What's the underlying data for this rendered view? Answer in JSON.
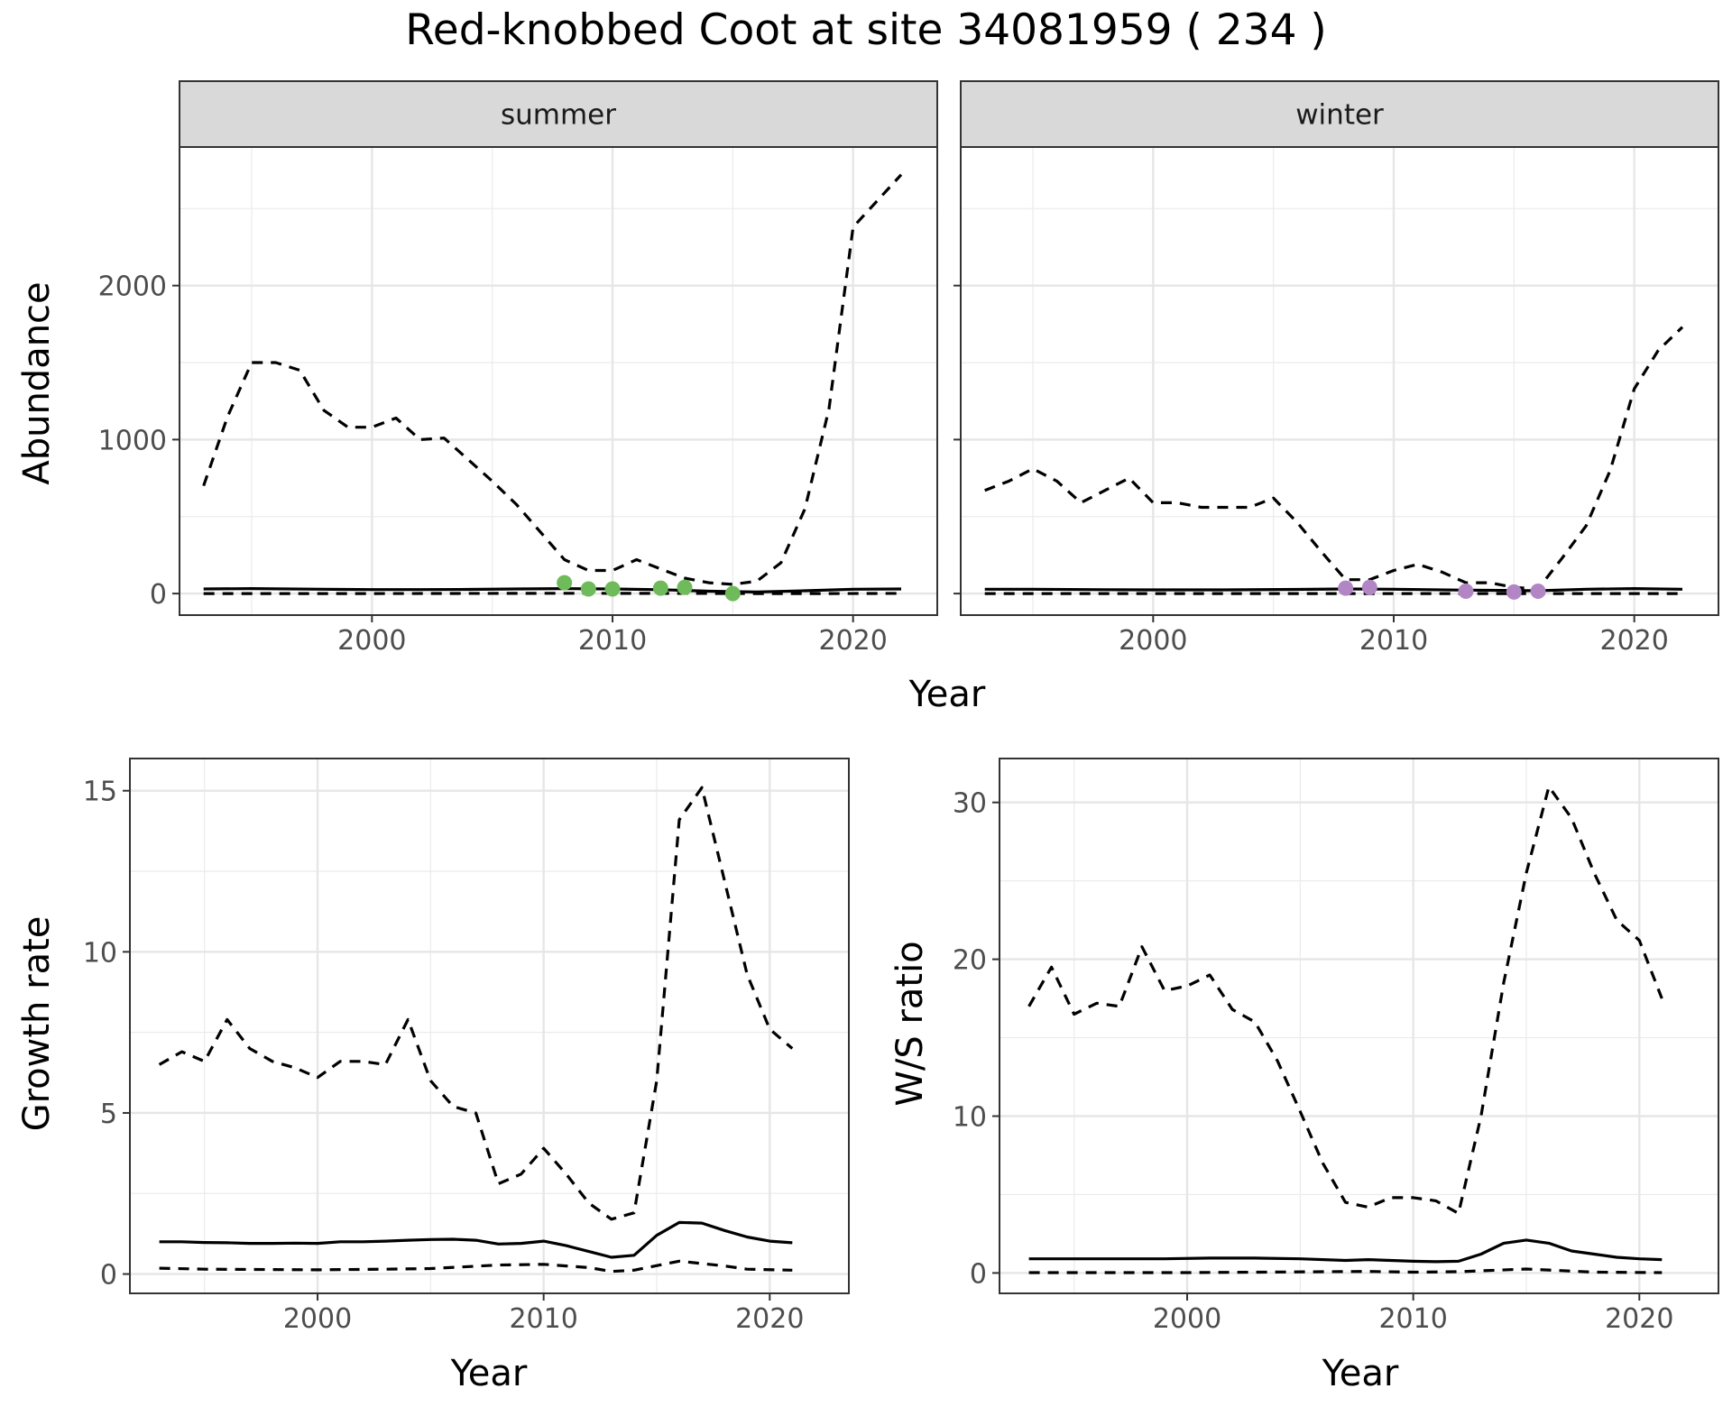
{
  "title": "Red-knobbed Coot at site 34081959 ( 234 )",
  "colors": {
    "summer_points": "#6fbb5b",
    "winter_points": "#b286c4",
    "line": "#000000"
  },
  "chart_data": [
    {
      "type": "line",
      "panel": "summer",
      "strip_label": "summer",
      "xlabel": "Year",
      "ylabel": "Abundance",
      "xlim": [
        1992,
        2023.5
      ],
      "ylim": [
        -140,
        2900
      ],
      "x_ticks": [
        2000,
        2010,
        2020
      ],
      "y_ticks": [
        0,
        1000,
        2000
      ],
      "grid": true,
      "series": [
        {
          "role": "upper",
          "style": "dashed",
          "x": [
            1993,
            1994,
            1995,
            1996,
            1997,
            1998,
            1999,
            2000,
            2001,
            2002,
            2003,
            2004,
            2005,
            2006,
            2007,
            2008,
            2009,
            2010,
            2011,
            2012,
            2013,
            2014,
            2015,
            2016,
            2017,
            2018,
            2019,
            2020,
            2021,
            2022
          ],
          "values": [
            700,
            1150,
            1500,
            1500,
            1450,
            1190,
            1080,
            1080,
            1140,
            1000,
            1010,
            870,
            730,
            580,
            400,
            220,
            150,
            150,
            220,
            160,
            100,
            70,
            60,
            80,
            200,
            550,
            1200,
            2380,
            2550,
            2720
          ]
        },
        {
          "role": "mean",
          "style": "solid",
          "x": [
            1993,
            1995,
            1998,
            2000,
            2002,
            2004,
            2006,
            2008,
            2010,
            2012,
            2014,
            2016,
            2018,
            2020,
            2022
          ],
          "values": [
            30,
            32,
            28,
            26,
            26,
            27,
            30,
            32,
            30,
            25,
            15,
            10,
            18,
            28,
            30
          ]
        },
        {
          "role": "lower",
          "style": "dashed",
          "x": [
            1993,
            2000,
            2008,
            2013,
            2016,
            2019,
            2022
          ],
          "values": [
            0,
            0,
            2,
            1,
            0,
            0,
            1
          ]
        }
      ],
      "points": {
        "x": [
          2008,
          2009,
          2010,
          2012,
          2013,
          2015
        ],
        "values": [
          70,
          30,
          30,
          35,
          40,
          0
        ]
      }
    },
    {
      "type": "line",
      "panel": "winter",
      "strip_label": "winter",
      "xlabel": "Year",
      "ylabel": "Abundance",
      "xlim": [
        1992,
        2023.5
      ],
      "ylim": [
        -140,
        2900
      ],
      "x_ticks": [
        2000,
        2010,
        2020
      ],
      "y_ticks": [
        0,
        1000,
        2000
      ],
      "grid": true,
      "series": [
        {
          "role": "upper",
          "style": "dashed",
          "x": [
            1993,
            1994,
            1995,
            1996,
            1997,
            1998,
            1999,
            2000,
            2001,
            2002,
            2003,
            2004,
            2005,
            2006,
            2007,
            2008,
            2009,
            2010,
            2011,
            2012,
            2013,
            2014,
            2015,
            2016,
            2017,
            2018,
            2019,
            2020,
            2021,
            2022
          ],
          "values": [
            670,
            730,
            810,
            730,
            590,
            670,
            750,
            590,
            590,
            560,
            560,
            560,
            620,
            460,
            270,
            90,
            90,
            150,
            190,
            140,
            70,
            70,
            40,
            30,
            230,
            440,
            800,
            1330,
            1580,
            1730
          ]
        },
        {
          "role": "mean",
          "style": "solid",
          "x": [
            1993,
            1995,
            1998,
            2000,
            2003,
            2006,
            2008,
            2010,
            2013,
            2016,
            2018,
            2020,
            2022
          ],
          "values": [
            28,
            28,
            25,
            24,
            24,
            27,
            30,
            28,
            22,
            18,
            28,
            32,
            28
          ]
        },
        {
          "role": "lower",
          "style": "dashed",
          "x": [
            1993,
            2000,
            2010,
            2016,
            2022
          ],
          "values": [
            0,
            0,
            0,
            0,
            0
          ]
        }
      ],
      "points": {
        "x": [
          2008,
          2009,
          2013,
          2015,
          2016
        ],
        "values": [
          35,
          40,
          15,
          10,
          15
        ]
      }
    },
    {
      "type": "line",
      "panel": "growth",
      "xlabel": "Year",
      "ylabel": "Growth rate",
      "xlim": [
        1991.7,
        2023.5
      ],
      "ylim": [
        -0.6,
        16.0
      ],
      "x_ticks": [
        2000,
        2010,
        2020
      ],
      "y_ticks": [
        0,
        5,
        10,
        15
      ],
      "grid": true,
      "series": [
        {
          "role": "upper",
          "style": "dashed",
          "x": [
            1993,
            1994,
            1995,
            1996,
            1997,
            1998,
            1999,
            2000,
            2001,
            2002,
            2003,
            2004,
            2005,
            2006,
            2007,
            2008,
            2009,
            2010,
            2011,
            2012,
            2013,
            2014,
            2015,
            2016,
            2017,
            2018,
            2019,
            2020,
            2021
          ],
          "values": [
            6.5,
            6.9,
            6.6,
            7.9,
            7.0,
            6.6,
            6.4,
            6.1,
            6.6,
            6.6,
            6.5,
            7.9,
            6.0,
            5.2,
            5.0,
            2.8,
            3.1,
            3.9,
            3.1,
            2.2,
            1.7,
            1.9,
            6.0,
            14.1,
            15.1,
            12.2,
            9.3,
            7.6,
            7.0
          ]
        },
        {
          "role": "mean",
          "style": "solid",
          "x": [
            1993,
            1994,
            1995,
            1996,
            1997,
            1998,
            1999,
            2000,
            2001,
            2002,
            2003,
            2004,
            2005,
            2006,
            2007,
            2008,
            2009,
            2010,
            2011,
            2012,
            2013,
            2014,
            2015,
            2016,
            2017,
            2018,
            2019,
            2020,
            2021
          ],
          "values": [
            1.0,
            1.0,
            0.98,
            0.97,
            0.95,
            0.95,
            0.96,
            0.95,
            1.0,
            1.0,
            1.02,
            1.05,
            1.07,
            1.08,
            1.05,
            0.93,
            0.95,
            1.02,
            0.88,
            0.7,
            0.52,
            0.58,
            1.2,
            1.6,
            1.58,
            1.35,
            1.15,
            1.02,
            0.97
          ]
        },
        {
          "role": "lower",
          "style": "dashed",
          "x": [
            1993,
            1995,
            2000,
            2003,
            2005,
            2008,
            2010,
            2012,
            2013,
            2014,
            2016,
            2018,
            2019,
            2021
          ],
          "values": [
            0.18,
            0.15,
            0.13,
            0.15,
            0.17,
            0.28,
            0.3,
            0.2,
            0.08,
            0.12,
            0.4,
            0.25,
            0.15,
            0.12
          ]
        }
      ]
    },
    {
      "type": "line",
      "panel": "ws_ratio",
      "xlabel": "Year",
      "ylabel": "W/S ratio",
      "xlim": [
        1991.7,
        2023.5
      ],
      "ylim": [
        -1.3,
        32.8
      ],
      "x_ticks": [
        2000,
        2010,
        2020
      ],
      "y_ticks": [
        0,
        10,
        20,
        30
      ],
      "grid": true,
      "series": [
        {
          "role": "upper",
          "style": "dashed",
          "x": [
            1993,
            1994,
            1995,
            1996,
            1997,
            1998,
            1999,
            2000,
            2001,
            2002,
            2003,
            2004,
            2005,
            2006,
            2007,
            2008,
            2009,
            2010,
            2011,
            2012,
            2013,
            2014,
            2015,
            2016,
            2017,
            2018,
            2019,
            2020,
            2021
          ],
          "values": [
            17.0,
            19.5,
            16.5,
            17.2,
            17.0,
            20.8,
            18.0,
            18.3,
            19.0,
            16.8,
            16.0,
            13.5,
            10.3,
            7.0,
            4.5,
            4.2,
            4.8,
            4.8,
            4.6,
            3.8,
            10.0,
            18.5,
            25.5,
            31.0,
            29.0,
            25.5,
            22.5,
            21.2,
            17.5
          ]
        },
        {
          "role": "mean",
          "style": "solid",
          "x": [
            1993,
            1995,
            1997,
            1999,
            2001,
            2003,
            2005,
            2007,
            2008,
            2010,
            2011,
            2012,
            2013,
            2014,
            2015,
            2016,
            2017,
            2018,
            2019,
            2020,
            2021
          ],
          "values": [
            0.9,
            0.9,
            0.9,
            0.9,
            0.95,
            0.95,
            0.9,
            0.8,
            0.85,
            0.75,
            0.72,
            0.75,
            1.2,
            1.9,
            2.1,
            1.9,
            1.4,
            1.2,
            1.0,
            0.9,
            0.85
          ]
        },
        {
          "role": "lower",
          "style": "dashed",
          "x": [
            1993,
            2000,
            2008,
            2010,
            2012,
            2015,
            2018,
            2021
          ],
          "values": [
            0.02,
            0.02,
            0.1,
            0.05,
            0.08,
            0.25,
            0.05,
            0.02
          ]
        }
      ]
    }
  ]
}
